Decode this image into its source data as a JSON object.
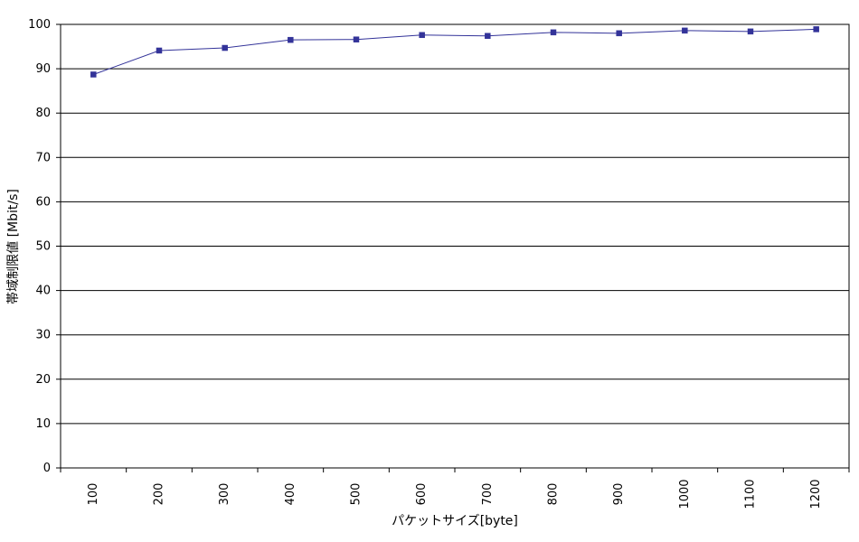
{
  "chart_data": {
    "type": "line",
    "title": "",
    "xlabel": "パケットサイズ[byte]",
    "ylabel": "帯域制限値 [Mbit/s]",
    "categories": [
      "100",
      "200",
      "300",
      "400",
      "500",
      "600",
      "700",
      "800",
      "900",
      "1000",
      "1100",
      "1200"
    ],
    "series": [
      {
        "values": [
          88.7,
          94.1,
          94.7,
          96.5,
          96.6,
          97.6,
          97.4,
          98.2,
          98.0,
          98.6,
          98.4,
          98.9
        ],
        "color": "#333399",
        "marker": "square"
      }
    ],
    "ylim": [
      0,
      100
    ],
    "yticks": [
      "0",
      "10",
      "20",
      "30",
      "40",
      "50",
      "60",
      "70",
      "80",
      "90",
      "100"
    ],
    "grid": "horizontal major gridlines",
    "legend": "none"
  }
}
